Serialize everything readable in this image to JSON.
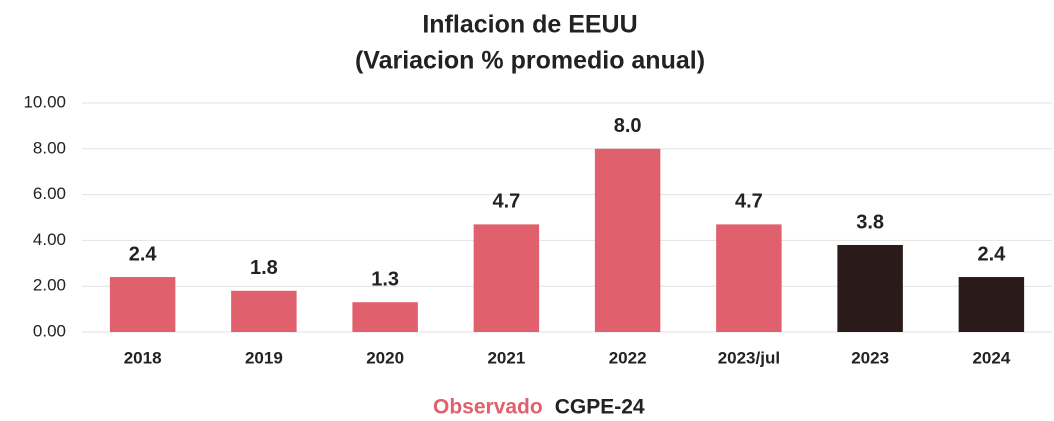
{
  "chart_data": {
    "type": "bar",
    "title": "Inflacion de EEUU",
    "subtitle": "(Variacion % promedio anual)",
    "categories": [
      "2018",
      "2019",
      "2020",
      "2021",
      "2022",
      "2023/jul",
      "2023",
      "2024"
    ],
    "series": [
      {
        "name": "Observado",
        "color": "#e0606e",
        "values": [
          2.4,
          1.8,
          1.3,
          4.7,
          8.0,
          4.7,
          null,
          null
        ],
        "value_labels": [
          "2.4",
          "1.8",
          "1.3",
          "4.7",
          "8.0",
          "4.7",
          null,
          null
        ]
      },
      {
        "name": "CGPE-24",
        "color": "#2b1a1a",
        "values": [
          null,
          null,
          null,
          null,
          null,
          null,
          3.8,
          2.4
        ],
        "value_labels": [
          null,
          null,
          null,
          null,
          null,
          null,
          "3.8",
          "2.4"
        ]
      }
    ],
    "ylim": [
      0,
      10
    ],
    "yticks": [
      {
        "value": 0,
        "label": "0.00"
      },
      {
        "value": 2,
        "label": "2.00"
      },
      {
        "value": 4,
        "label": "4.00"
      },
      {
        "value": 6,
        "label": "6.00"
      },
      {
        "value": 8,
        "label": "8.00"
      },
      {
        "value": 10,
        "label": "10.00"
      }
    ],
    "grid": true
  }
}
